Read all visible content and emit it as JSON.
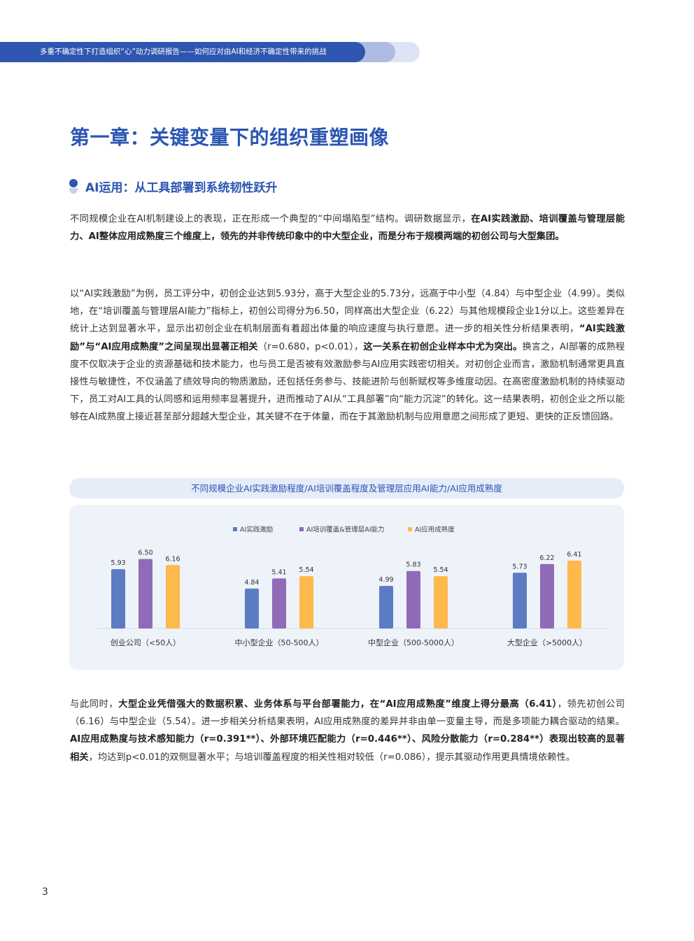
{
  "header": {
    "banner_text": "多重不确定性下打造组织“心”动力调研报告——如何应对由AI和经济不确定性带来的挑战"
  },
  "chapter": {
    "title": "第一章：关键变量下的组织重塑画像"
  },
  "section": {
    "title": "AI运用：从工具部署到系统韧性跃升"
  },
  "paragraphs": {
    "p1": [
      {
        "text": "不同规模企业在AI机制建设上的表现，正在形成一个典型的“中间塌陷型”结构。调研数据显示，",
        "bold": false
      },
      {
        "text": "在AI实践激励、培训覆盖与管理层能力、AI整体应用成熟度三个维度上，领先的并非传统印象中的中大型企业，而是分布于规模两端的初创公司与大型集团。",
        "bold": true
      }
    ],
    "p2": [
      {
        "text": "以“AI实践激励”为例，员工评分中，初创企业达到5.93分，高于大型企业的5.73分，远高于中小型（4.84）与中型企业（4.99）。类似地，在“培训覆盖与管理层AI能力”指标上，初创公司得分为6.50，同样高出大型企业（6.22）与其他规模段企业1分以上。这些差异在统计上达到显著水平，显示出初创企业在机制层面有着超出体量的响应速度与执行意愿。进一步的相关性分析结果表明，",
        "bold": false
      },
      {
        "text": "“AI实践激励”与“AI应用成熟度”之间呈现出显著正相关",
        "bold": true
      },
      {
        "text": "（r=0.680，p<0.01），",
        "bold": false
      },
      {
        "text": "这一关系在初创企业样本中尤为突出。",
        "bold": true
      },
      {
        "text": "换言之，AI部署的成熟程度不仅取决于企业的资源基础和技术能力，也与员工是否被有效激励参与AI应用实践密切相关。对初创企业而言，激励机制通常更具直接性与敏捷性，不仅涵盖了绩效导向的物质激励，还包括任务参与、技能进阶与创新赋权等多维度动因。在高密度激励机制的持续驱动下，员工对AI工具的认同感和运用频率显著提升，进而推动了AI从“工具部署”向“能力沉淀”的转化。这一结果表明，初创企业之所以能够在AI成熟度上接近甚至部分超越大型企业，其关键不在于体量，而在于其激励机制与应用意愿之间形成了更短、更快的正反馈回路。",
        "bold": false
      }
    ],
    "p3": [
      {
        "text": "与此同时，",
        "bold": false
      },
      {
        "text": "大型企业凭借强大的数据积累、业务体系与平台部署能力，在“AI应用成熟度”维度上得分最高（6.41）",
        "bold": true
      },
      {
        "text": "，领先初创公司（6.16）与中型企业（5.54）。进一步相关分析结果表明，AI应用成熟度的差异并非由单一变量主导，而是多项能力耦合驱动的结果。",
        "bold": false
      },
      {
        "text": "AI应用成熟度与技术感知能力（r=0.391**）、外部环境匹配能力（r=0.446**）、风险分散能力（r=0.284**）表现出较高的显著相关",
        "bold": true
      },
      {
        "text": "，均达到p<0.01的双侧显著水平；与培训覆盖程度的相关性相对较低（r=0.086），提示其驱动作用更具情境依赖性。",
        "bold": false
      }
    ]
  },
  "chart_title": "不同规模企业AI实践激励程度/AI培训覆盖程度及管理层应用AI能力/AI应用成熟度",
  "chart_data": {
    "type": "bar",
    "title": "不同规模企业AI实践激励程度/AI培训覆盖程度及管理层应用AI能力/AI应用成熟度",
    "categories": [
      "创业公司（<50人）",
      "中小型企业（50-500人）",
      "中型企业（500-5000人）",
      "大型企业（>5000人）"
    ],
    "series": [
      {
        "name": "AI实践激励",
        "color": "#5b7bc3",
        "values": [
          5.93,
          4.84,
          4.99,
          5.73
        ]
      },
      {
        "name": "AI培训覆盖&管理层AI能力",
        "color": "#8f6bb8",
        "values": [
          6.5,
          5.41,
          5.83,
          6.22
        ]
      },
      {
        "name": "AI应用成熟度",
        "color": "#fdb94c",
        "values": [
          6.16,
          5.54,
          5.54,
          6.41
        ]
      }
    ],
    "data_labels": true,
    "grid": false,
    "legend_position": "top-center",
    "ylim": [
      2.6,
      6.8
    ]
  },
  "page_number": "3"
}
